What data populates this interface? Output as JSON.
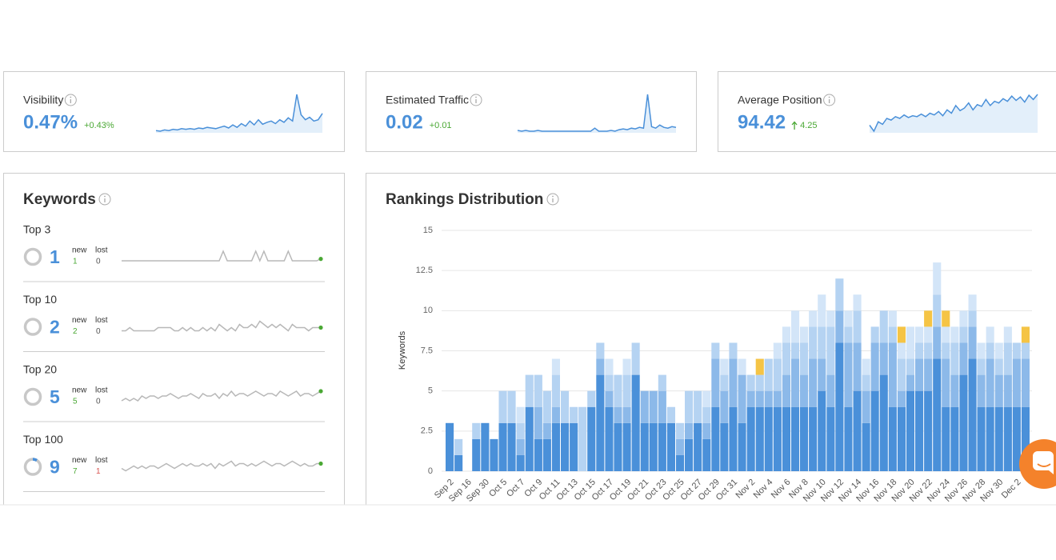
{
  "cards": [
    {
      "label": "Visibility",
      "value": "0.47%",
      "change": "+0.43%",
      "sparkline": [
        0.05,
        0.04,
        0.06,
        0.05,
        0.07,
        0.06,
        0.08,
        0.07,
        0.08,
        0.07,
        0.09,
        0.08,
        0.1,
        0.09,
        0.08,
        0.1,
        0.12,
        0.09,
        0.14,
        0.1,
        0.16,
        0.12,
        0.2,
        0.14,
        0.22,
        0.15,
        0.18,
        0.2,
        0.16,
        0.22,
        0.18,
        0.25,
        0.2,
        0.62,
        0.3,
        0.22,
        0.26,
        0.2,
        0.22,
        0.32
      ]
    },
    {
      "label": "Estimated Traffic",
      "value": "0.02",
      "change": "+0.01",
      "sparkline": [
        0.003,
        0.002,
        0.003,
        0.002,
        0.002,
        0.003,
        0.002,
        0.002,
        0.002,
        0.002,
        0.002,
        0.002,
        0.002,
        0.002,
        0.002,
        0.002,
        0.002,
        0.002,
        0.002,
        0.006,
        0.002,
        0.002,
        0.002,
        0.003,
        0.002,
        0.004,
        0.005,
        0.004,
        0.006,
        0.005,
        0.007,
        0.006,
        0.05,
        0.008,
        0.006,
        0.01,
        0.007,
        0.006,
        0.008,
        0.007
      ]
    },
    {
      "label": "Average Position",
      "value": "94.42",
      "change": "4.25",
      "sparkline": [
        62,
        55,
        66,
        63,
        70,
        68,
        72,
        70,
        74,
        71,
        73,
        72,
        75,
        72,
        76,
        74,
        78,
        73,
        80,
        76,
        85,
        79,
        82,
        88,
        80,
        86,
        84,
        92,
        85,
        90,
        88,
        93,
        90,
        96,
        91,
        95,
        89,
        97,
        92,
        98
      ]
    }
  ],
  "keywords": {
    "title": "Keywords",
    "new_label": "new",
    "lost_label": "lost",
    "rows": [
      {
        "label": "Top 3",
        "count": 1,
        "new": 1,
        "lost": 0,
        "sparkline": [
          1,
          1,
          1,
          1,
          1,
          1,
          1,
          1,
          1,
          1,
          1,
          1,
          1,
          1,
          1,
          1,
          1,
          1,
          1,
          1,
          1,
          1,
          1,
          1,
          1,
          2,
          1,
          1,
          1,
          1,
          1,
          1,
          1,
          2,
          1,
          2,
          1,
          1,
          1,
          1,
          1,
          2,
          1,
          1,
          1,
          1,
          1,
          1,
          1,
          1.2
        ]
      },
      {
        "label": "Top 10",
        "count": 2,
        "new": 2,
        "lost": 0,
        "sparkline": [
          1,
          1,
          2,
          1,
          1,
          1,
          1,
          1,
          1,
          2,
          2,
          2,
          2,
          1,
          1,
          2,
          1,
          2,
          1,
          1,
          2,
          1,
          2,
          1,
          3,
          2,
          1,
          2,
          1,
          3,
          2,
          2,
          3,
          2,
          4,
          3,
          2,
          3,
          2,
          3,
          2,
          1,
          3,
          2,
          2,
          2,
          1,
          2,
          2,
          2
        ]
      },
      {
        "label": "Top 20",
        "count": 5,
        "new": 5,
        "lost": 0,
        "sparkline": [
          3,
          4,
          3,
          4,
          3,
          5,
          4,
          5,
          5,
          4,
          5,
          5,
          6,
          5,
          4,
          5,
          5,
          6,
          5,
          4,
          6,
          5,
          5,
          6,
          4,
          6,
          5,
          7,
          5,
          6,
          6,
          5,
          6,
          7,
          6,
          5,
          6,
          6,
          5,
          7,
          6,
          5,
          6,
          7,
          5,
          6,
          6,
          5,
          6,
          7
        ]
      },
      {
        "label": "Top 100",
        "count": 9,
        "new": 7,
        "lost": 1,
        "sparkline": [
          6,
          5,
          6,
          7,
          6,
          7,
          6,
          7,
          7,
          6,
          7,
          8,
          7,
          6,
          7,
          8,
          7,
          8,
          7,
          7,
          8,
          7,
          8,
          6,
          8,
          7,
          8,
          9,
          7,
          8,
          8,
          7,
          8,
          7,
          8,
          9,
          8,
          7,
          8,
          8,
          7,
          8,
          9,
          8,
          7,
          8,
          7,
          7,
          8,
          8
        ]
      }
    ]
  },
  "chart_data": {
    "type": "bar",
    "stacked": true,
    "title": "Rankings Distribution",
    "y_label": "Keywords",
    "categories": [
      "Sep 2",
      null,
      "Sep 16",
      null,
      "Sep 30",
      null,
      "Oct 5",
      null,
      "Oct 7",
      null,
      "Oct 9",
      null,
      "Oct 11",
      null,
      "Oct 13",
      null,
      "Oct 15",
      null,
      "Oct 17",
      null,
      "Oct 19",
      null,
      "Oct 21",
      null,
      "Oct 23",
      null,
      "Oct 25",
      null,
      "Oct 27",
      null,
      "Oct 29",
      null,
      "Oct 31",
      null,
      "Nov 2",
      null,
      "Nov 4",
      null,
      "Nov 6",
      null,
      "Nov 8",
      null,
      "Nov 10",
      null,
      "Nov 12",
      null,
      "Nov 14",
      null,
      "Nov 16",
      null,
      "Nov 18",
      null,
      "Nov 20",
      null,
      "Nov 22",
      null,
      "Nov 24",
      null,
      "Nov 26",
      null,
      "Nov 28",
      null,
      "Nov 30",
      null,
      "Dec 2",
      null
    ],
    "series": [
      {
        "color": "#4a90d9",
        "values": [
          3,
          1,
          0,
          2,
          3,
          2,
          3,
          3,
          1,
          4,
          2,
          2,
          3,
          3,
          3,
          0,
          4,
          6,
          4,
          3,
          3,
          6,
          3,
          3,
          3,
          3,
          1,
          2,
          3,
          2,
          4,
          3,
          4,
          3,
          4,
          4,
          4,
          4,
          4,
          4,
          4,
          4,
          5,
          4,
          8,
          4,
          5,
          3,
          5,
          6,
          4,
          4,
          5,
          5,
          5,
          7,
          4,
          4,
          6,
          7,
          4,
          4,
          4,
          4,
          4,
          4
        ]
      },
      {
        "color": "#8cb9e9",
        "values": [
          0,
          0,
          0,
          0,
          0,
          0,
          0,
          0,
          1,
          0,
          2,
          1,
          1,
          0,
          0,
          0,
          0,
          1,
          1,
          1,
          1,
          0,
          2,
          2,
          2,
          0,
          1,
          1,
          0,
          1,
          3,
          2,
          3,
          3,
          1,
          1,
          1,
          1,
          2,
          3,
          2,
          3,
          2,
          2,
          2,
          4,
          3,
          2,
          3,
          2,
          4,
          1,
          1,
          2,
          2,
          2,
          3,
          2,
          2,
          2,
          2,
          3,
          2,
          2,
          3,
          3
        ]
      },
      {
        "color": "#b5d3f2",
        "values": [
          0,
          1,
          0,
          1,
          0,
          0,
          2,
          2,
          1,
          2,
          2,
          2,
          2,
          2,
          1,
          4,
          1,
          1,
          1,
          2,
          2,
          2,
          0,
          0,
          1,
          1,
          1,
          2,
          2,
          1,
          1,
          1,
          1,
          0,
          1,
          1,
          2,
          2,
          2,
          1,
          2,
          2,
          2,
          3,
          2,
          1,
          2,
          1,
          1,
          2,
          1,
          2,
          1,
          1,
          1,
          2,
          1,
          2,
          1,
          1,
          1,
          1,
          1,
          2,
          1,
          1
        ]
      },
      {
        "color": "#d3e5f8",
        "values": [
          0,
          0,
          0,
          0,
          0,
          0,
          0,
          0,
          1,
          0,
          0,
          0,
          1,
          0,
          0,
          0,
          0,
          0,
          1,
          0,
          1,
          0,
          0,
          0,
          0,
          0,
          0,
          0,
          0,
          1,
          0,
          1,
          0,
          1,
          0,
          0,
          0,
          1,
          1,
          2,
          1,
          1,
          2,
          1,
          0,
          1,
          1,
          1,
          0,
          0,
          1,
          1,
          2,
          1,
          1,
          2,
          1,
          1,
          1,
          1,
          1,
          1,
          1,
          1,
          0,
          0
        ]
      },
      {
        "color": "#f5c445",
        "values": [
          0,
          0,
          0,
          0,
          0,
          0,
          0,
          0,
          0,
          0,
          0,
          0,
          0,
          0,
          0,
          0,
          0,
          0,
          0,
          0,
          0,
          0,
          0,
          0,
          0,
          0,
          0,
          0,
          0,
          0,
          0,
          0,
          0,
          0,
          0,
          1,
          0,
          0,
          0,
          0,
          0,
          0,
          0,
          0,
          0,
          0,
          0,
          0,
          0,
          0,
          0,
          1,
          0,
          0,
          1,
          0,
          1,
          0,
          0,
          0,
          0,
          0,
          0,
          0,
          0,
          1
        ]
      }
    ],
    "ylim": [
      0,
      15
    ],
    "yticks": [
      0,
      2.5,
      5,
      7.5,
      10,
      12.5,
      15
    ],
    "grid": true
  }
}
